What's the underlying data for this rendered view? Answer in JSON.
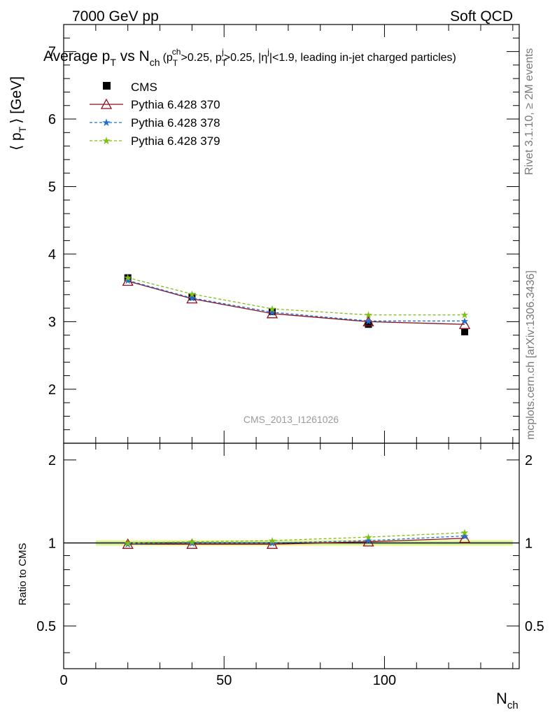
{
  "header": {
    "left": "7000 GeV pp",
    "right": "Soft QCD"
  },
  "title": {
    "main": "Average p",
    "main_sub": "T",
    "vs": " vs N",
    "vs_sub": "ch",
    "cuts": "(p",
    "cuts_sub": "T",
    "cuts_sup": "ch",
    "cuts_rest1": ">0.25, p",
    "cuts_sub2": "T",
    "cuts_sup2": "j",
    "cuts_rest2": ">0.25, |η",
    "cuts_sup3": "j",
    "cuts_rest3": "|<1.9, leading in-jet charged particles)"
  },
  "side_labels": {
    "rivet": "Rivet 3.1.10, ≥ 2M events",
    "mcplots": "mcplots.cern.ch [arXiv:1306.3436]"
  },
  "watermark": "CMS_2013_I1261026",
  "colors": {
    "cms": "#000000",
    "p370": "#8b0f1c",
    "p378": "#1f6fd6",
    "p379": "#7dbf14",
    "band_yellow": "#f4f59a",
    "band_green": "#c8eea0"
  },
  "chart_data": [
    {
      "type": "line",
      "panel": "main",
      "ylabel": "⟨ p",
      "ylabel_sub": "T",
      "ylabel_rest": "⟩ [GeV]",
      "xlabel": "N",
      "xlabel_sub": "ch",
      "xlim": [
        0,
        142
      ],
      "ylim": [
        1.2,
        7.4
      ],
      "x_ticks": [
        "0",
        "50",
        "100"
      ],
      "y_ticks": [
        "2",
        "3",
        "4",
        "5",
        "6",
        "7"
      ],
      "legend_position": "top-left",
      "series": [
        {
          "name": "CMS",
          "marker": "square",
          "x": [
            20,
            40,
            65,
            95,
            125
          ],
          "y": [
            3.65,
            3.37,
            3.15,
            2.96,
            2.85
          ]
        },
        {
          "name": "Pythia 6.428 370",
          "marker": "triangle",
          "x": [
            20,
            40,
            65,
            95,
            125
          ],
          "y": [
            3.6,
            3.34,
            3.12,
            3.0,
            2.96
          ]
        },
        {
          "name": "Pythia 6.428 378",
          "marker": "star",
          "x": [
            20,
            40,
            65,
            95,
            125
          ],
          "y": [
            3.61,
            3.35,
            3.14,
            3.01,
            3.01
          ]
        },
        {
          "name": "Pythia 6.428 379",
          "marker": "star",
          "x": [
            20,
            40,
            65,
            95,
            125
          ],
          "y": [
            3.65,
            3.41,
            3.19,
            3.1,
            3.1
          ]
        }
      ]
    },
    {
      "type": "line",
      "panel": "ratio",
      "ylabel": "Ratio to CMS",
      "xlabel": "N",
      "xlabel_sub": "ch",
      "xlim": [
        0,
        142
      ],
      "ylim": [
        0.35,
        2.3
      ],
      "y_ticks": [
        "0.5",
        "1",
        "2"
      ],
      "band": {
        "x": [
          10,
          140
        ],
        "yellow": [
          0.975,
          1.025
        ],
        "green": [
          0.985,
          1.015
        ]
      },
      "series": [
        {
          "name": "Pythia 6.428 370",
          "x": [
            20,
            40,
            65,
            95,
            125
          ],
          "y": [
            0.99,
            0.99,
            0.99,
            1.01,
            1.04
          ]
        },
        {
          "name": "Pythia 6.428 378",
          "x": [
            20,
            40,
            65,
            95,
            125
          ],
          "y": [
            0.99,
            1.0,
            1.0,
            1.02,
            1.06
          ]
        },
        {
          "name": "Pythia 6.428 379",
          "x": [
            20,
            40,
            65,
            95,
            125
          ],
          "y": [
            1.0,
            1.01,
            1.02,
            1.05,
            1.09
          ]
        }
      ]
    }
  ]
}
